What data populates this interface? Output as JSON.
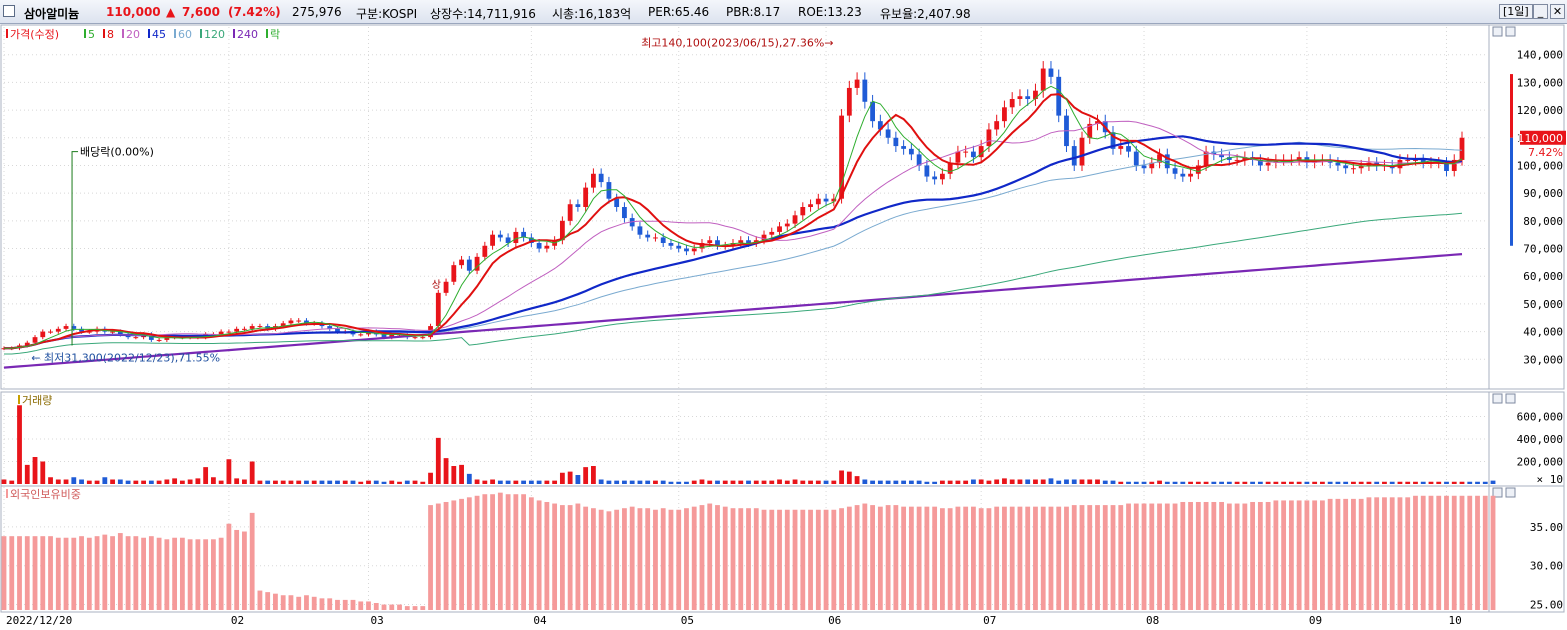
{
  "header": {
    "stock_name": "삼아알미늄",
    "price": "110,000",
    "change_arrow": "▲",
    "change": "7,600",
    "change_pct": "(7.42%)",
    "volume": "275,976",
    "market": "구분:KOSPI",
    "listed_shares": "상장수:14,711,916",
    "market_cap": "시총:16,183억",
    "per": "PER:65.46",
    "pbr": "PBR:8.17",
    "roe": "ROE:13.23",
    "float": "유보율:2,407.98",
    "period": "[1일]",
    "btn_min": "_",
    "btn_close": "✕"
  },
  "colors": {
    "up": "#e8141a",
    "down": "#1f5bd6",
    "ma5": "#2fae2f",
    "ma8": "#e01010",
    "ma20": "#c060c0",
    "ma45": "#1028c8",
    "ma60": "#7aaad0",
    "ma120": "#3aa87a",
    "ma240": "#7a28b4",
    "volume": "#e8141a",
    "foreign": "#f59a9a",
    "grid": "#d8d8d8"
  },
  "chart_data": [
    {
      "type": "candlestick",
      "title": "가격(수정)",
      "legend": [
        {
          "label": "가격(수정)",
          "color": "#e8141a"
        },
        {
          "label": "5",
          "color": "#2fae2f"
        },
        {
          "label": "8",
          "color": "#e01010"
        },
        {
          "label": "20",
          "color": "#c060c0"
        },
        {
          "label": "45",
          "color": "#1028c8"
        },
        {
          "label": "60",
          "color": "#7aaad0"
        },
        {
          "label": "120",
          "color": "#3aa87a"
        },
        {
          "label": "240",
          "color": "#7a28b4"
        },
        {
          "label": "락",
          "color": "#2fae2f"
        }
      ],
      "ylim": [
        20000,
        150000
      ],
      "yticks": [
        30000,
        40000,
        50000,
        60000,
        70000,
        80000,
        90000,
        100000,
        110000,
        120000,
        130000,
        140000
      ],
      "ytick_labels": [
        "30,000",
        "40,000",
        "50,000",
        "60,000",
        "70,000",
        "80,000",
        "90,000",
        "100,000",
        "110,000",
        "120,000",
        "130,000",
        "140,000"
      ],
      "xticks": [
        {
          "label": "2022/12/20",
          "index": 0
        },
        {
          "label": "02",
          "index": 29
        },
        {
          "label": "03",
          "index": 47
        },
        {
          "label": "04",
          "index": 68
        },
        {
          "label": "05",
          "index": 87
        },
        {
          "label": "06",
          "index": 106
        },
        {
          "label": "07",
          "index": 126
        },
        {
          "label": "08",
          "index": 147
        },
        {
          "label": "09",
          "index": 168
        },
        {
          "label": "10",
          "index": 186
        }
      ],
      "closes": [
        34000,
        34000,
        35000,
        36000,
        38000,
        40000,
        40000,
        41000,
        42000,
        41000,
        40000,
        40000,
        41000,
        40000,
        40000,
        39000,
        38000,
        38000,
        39000,
        37000,
        37000,
        38000,
        38000,
        38000,
        38000,
        38000,
        39000,
        39000,
        40000,
        40000,
        41000,
        41000,
        42000,
        42000,
        41000,
        42000,
        43000,
        44000,
        44000,
        43000,
        43000,
        42000,
        41000,
        40000,
        40000,
        39000,
        39000,
        40000,
        39000,
        38000,
        39000,
        39000,
        38000,
        38000,
        38000,
        42000,
        54000,
        58000,
        64000,
        66000,
        62000,
        67000,
        71000,
        75000,
        74000,
        72000,
        76000,
        74000,
        72000,
        70000,
        71000,
        73000,
        80000,
        86000,
        85000,
        92000,
        97000,
        94000,
        88000,
        85000,
        81000,
        78000,
        75000,
        74000,
        74000,
        72000,
        71000,
        70000,
        69000,
        70000,
        72000,
        73000,
        71000,
        71000,
        72000,
        73000,
        72000,
        73000,
        75000,
        76000,
        78000,
        79000,
        82000,
        85000,
        86000,
        88000,
        87000,
        88000,
        118000,
        128000,
        131000,
        123000,
        116000,
        113000,
        110000,
        107000,
        106000,
        104000,
        100000,
        96000,
        95000,
        97000,
        101000,
        105000,
        105000,
        103000,
        107000,
        113000,
        116000,
        121000,
        124000,
        125000,
        124000,
        127000,
        135000,
        132000,
        118000,
        107000,
        100000,
        110000,
        115000,
        116000,
        112000,
        106000,
        107000,
        105000,
        100000,
        99000,
        101000,
        104000,
        99000,
        97000,
        96000,
        97000,
        100000,
        105000,
        104000,
        103000,
        102000,
        102000,
        103000,
        102000,
        100000,
        101000,
        102000,
        102000,
        102000,
        103000,
        101000,
        102000,
        102000,
        101000,
        100000,
        99000,
        99000,
        100000,
        101000,
        100000,
        100000,
        99000,
        102000,
        102000,
        102000,
        101000,
        101000,
        101000,
        98000,
        102000,
        110000
      ],
      "events": [
        {
          "label": "최고140,100(2023/06/15),27.36%",
          "index": 108,
          "value": 140100
        },
        {
          "label": "최저31,300(2022/12/23),71.55%",
          "index": 3,
          "value": 31300
        },
        {
          "label": "배당락(0.00%)",
          "index": 8
        },
        {
          "label": "상",
          "index": 56
        }
      ],
      "last_price_tag": "110,000",
      "last_change_tag": "7.42%"
    },
    {
      "type": "bar",
      "title": "거래량",
      "ylim": [
        0,
        800000
      ],
      "yticks": [
        200000,
        400000,
        600000
      ],
      "ytick_labels": [
        "200,000",
        "400,000",
        "600,000"
      ],
      "unit_note": "× 10",
      "values": [
        40000,
        30000,
        700000,
        170000,
        240000,
        200000,
        60000,
        40000,
        40000,
        60000,
        40000,
        30000,
        30000,
        60000,
        40000,
        40000,
        30000,
        30000,
        30000,
        30000,
        30000,
        40000,
        50000,
        30000,
        40000,
        50000,
        150000,
        60000,
        30000,
        220000,
        50000,
        40000,
        200000,
        30000,
        30000,
        30000,
        30000,
        30000,
        30000,
        30000,
        30000,
        30000,
        30000,
        30000,
        30000,
        30000,
        20000,
        30000,
        30000,
        20000,
        30000,
        20000,
        30000,
        30000,
        20000,
        100000,
        410000,
        230000,
        160000,
        170000,
        90000,
        40000,
        30000,
        40000,
        30000,
        30000,
        30000,
        30000,
        30000,
        30000,
        30000,
        30000,
        100000,
        110000,
        80000,
        150000,
        160000,
        40000,
        30000,
        30000,
        30000,
        30000,
        30000,
        30000,
        30000,
        30000,
        20000,
        20000,
        20000,
        30000,
        40000,
        30000,
        30000,
        30000,
        30000,
        30000,
        30000,
        30000,
        30000,
        30000,
        40000,
        30000,
        40000,
        30000,
        30000,
        30000,
        30000,
        30000,
        120000,
        110000,
        70000,
        40000,
        30000,
        30000,
        30000,
        30000,
        30000,
        30000,
        30000,
        20000,
        20000,
        30000,
        30000,
        30000,
        30000,
        40000,
        40000,
        30000,
        40000,
        50000,
        40000,
        40000,
        40000,
        40000,
        40000,
        50000,
        30000,
        40000,
        40000,
        40000,
        40000,
        40000,
        30000,
        30000,
        20000,
        20000,
        20000,
        20000,
        20000,
        30000,
        20000,
        20000,
        20000,
        20000,
        20000,
        20000,
        20000,
        20000,
        20000,
        20000,
        20000,
        20000,
        20000,
        20000,
        20000,
        20000,
        20000,
        20000,
        20000,
        20000,
        20000,
        20000,
        20000,
        20000,
        20000,
        20000,
        20000,
        20000,
        20000,
        20000,
        20000,
        20000,
        20000,
        20000,
        20000,
        20000,
        20000,
        20000,
        20000,
        20000,
        20000,
        20000,
        30000
      ]
    },
    {
      "type": "bar",
      "title": "외국인보유비중",
      "ylim": [
        24.3,
        40
      ],
      "yticks": [
        25,
        30,
        35
      ],
      "ytick_labels": [
        "25.00",
        "30.00",
        "35.00"
      ],
      "values": [
        33.8,
        33.8,
        33.8,
        33.8,
        33.8,
        33.8,
        33.8,
        33.6,
        33.6,
        33.6,
        33.8,
        33.6,
        33.8,
        34.0,
        33.8,
        34.2,
        33.8,
        33.8,
        33.6,
        33.8,
        33.6,
        33.4,
        33.6,
        33.6,
        33.4,
        33.4,
        33.4,
        33.4,
        33.6,
        35.4,
        34.6,
        34.4,
        36.8,
        26.8,
        26.6,
        26.4,
        26.2,
        26.2,
        26.0,
        26.2,
        26.0,
        25.8,
        25.8,
        25.6,
        25.6,
        25.6,
        25.4,
        25.4,
        25.2,
        25.0,
        25.0,
        25.0,
        24.8,
        24.8,
        24.8,
        37.8,
        38.0,
        38.2,
        38.4,
        38.6,
        38.8,
        39.0,
        39.2,
        39.2,
        39.4,
        39.2,
        39.2,
        39.2,
        38.8,
        38.4,
        38.2,
        38.0,
        37.8,
        37.8,
        38.0,
        37.6,
        37.4,
        37.2,
        37.0,
        37.2,
        37.4,
        37.6,
        37.4,
        37.4,
        37.2,
        37.4,
        37.2,
        37.2,
        37.4,
        37.6,
        37.8,
        38.0,
        37.8,
        37.6,
        37.4,
        37.4,
        37.4,
        37.4,
        37.2,
        37.2,
        37.2,
        37.2,
        37.2,
        37.2,
        37.2,
        37.2,
        37.2,
        37.2,
        37.4,
        37.6,
        37.8,
        38.0,
        37.8,
        37.6,
        37.8,
        37.8,
        37.6,
        37.6,
        37.6,
        37.6,
        37.6,
        37.4,
        37.4,
        37.6,
        37.6,
        37.6,
        37.4,
        37.4,
        37.6,
        37.6,
        37.6,
        37.6,
        37.6,
        37.6,
        37.6,
        37.6,
        37.6,
        37.6,
        37.8,
        37.8,
        37.8,
        37.8,
        37.8,
        37.8,
        37.8,
        38.0,
        38.0,
        38.0,
        38.0,
        38.0,
        38.0,
        38.0,
        38.2,
        38.2,
        38.2,
        38.2,
        38.2,
        38.2,
        38.0,
        38.0,
        38.0,
        38.2,
        38.2,
        38.2,
        38.4,
        38.4,
        38.4,
        38.4,
        38.4,
        38.4,
        38.4,
        38.6,
        38.6,
        38.6,
        38.6,
        38.6,
        38.8,
        38.8,
        38.8,
        38.8,
        38.8,
        38.8,
        39.0,
        39.0,
        39.0,
        39.0,
        39.0,
        39.0,
        39.0,
        39.0,
        39.0,
        39.0,
        39.0
      ]
    }
  ]
}
